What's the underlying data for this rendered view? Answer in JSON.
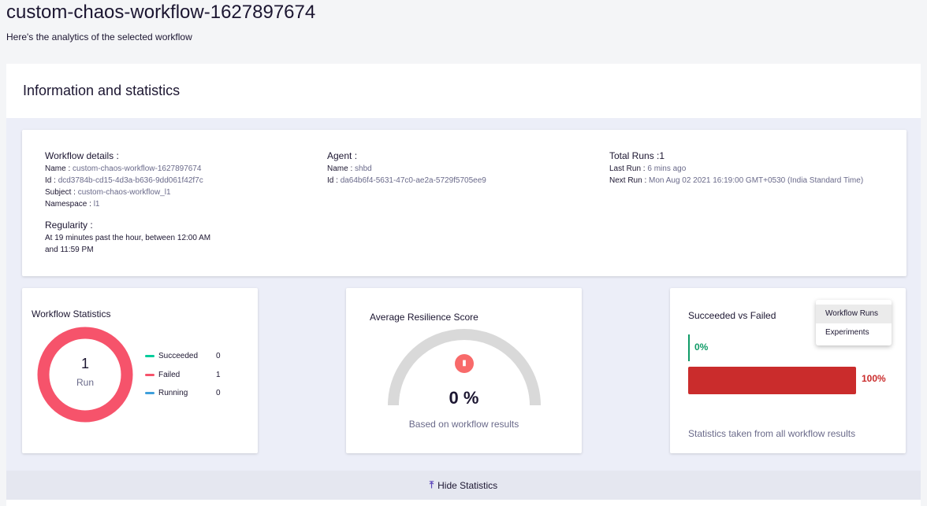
{
  "header": {
    "title": "custom-chaos-workflow-1627897674",
    "subtitle": "Here's the analytics of the selected workflow"
  },
  "panel": {
    "title": "Information and statistics"
  },
  "workflow_details": {
    "heading": "Workflow details :",
    "name_label": "Name : ",
    "name": "custom-chaos-workflow-1627897674",
    "id_label": "Id : ",
    "id": "dcd3784b-cd15-4d3a-b636-9dd061f42f7c",
    "subject_label": "Subject : ",
    "subject": "custom-chaos-workflow_l1",
    "namespace_label": "Namespace : ",
    "namespace": "l1"
  },
  "regularity": {
    "heading": "Regularity :",
    "text": "At 19 minutes past the hour, between 12:00 AM and 11:59 PM"
  },
  "agent": {
    "heading": "Agent :",
    "name_label": "Name : ",
    "name": "shbd",
    "id_label": "Id : ",
    "id": "da64b6f4-5631-47c0-ae2a-5729f5705ee9"
  },
  "runs": {
    "heading": "Total Runs :1",
    "last_label": "Last Run : ",
    "last": "6 mins ago",
    "next_label": "Next Run : ",
    "next": "Mon Aug 02 2021 16:19:00 GMT+0530 (India Standard Time)"
  },
  "workflow_stats": {
    "title": "Workflow Statistics",
    "total": "1",
    "unit": "Run",
    "legend": [
      {
        "label": "Succeeded",
        "value": "0",
        "color": "#00cc9b"
      },
      {
        "label": "Failed",
        "value": "1",
        "color": "#f6536b"
      },
      {
        "label": "Running",
        "value": "0",
        "color": "#3e9fdb"
      }
    ]
  },
  "resilience": {
    "title": "Average Resilience Score",
    "value": "0 %",
    "percent": 0,
    "caption": "Based on workflow results",
    "icon": "bar-chart-icon"
  },
  "succeeded_vs_failed": {
    "title": "Succeeded vs Failed",
    "succeeded": "0%",
    "failed": "100%",
    "succeeded_pct": 0,
    "failed_pct": 100,
    "caption": "Statistics taken from all workflow results",
    "menu": [
      "Workflow Runs",
      "Experiments"
    ],
    "colors": {
      "succeeded": "#109b67",
      "failed": "#ca2c2c"
    }
  },
  "footer": {
    "hide_label": "Hide Statistics",
    "icon": "collapse-up-icon"
  }
}
